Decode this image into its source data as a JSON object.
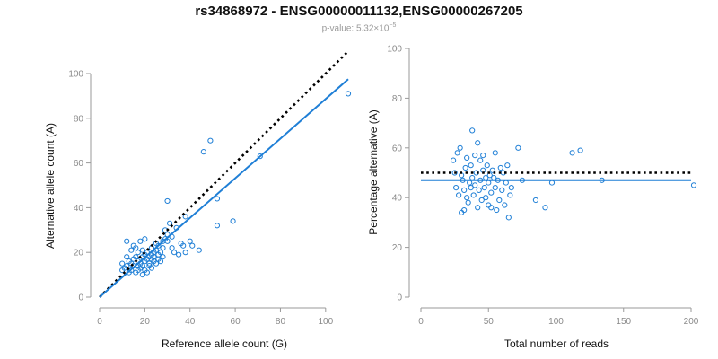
{
  "header": {
    "title": "rs34868972 - ENSG00000011132,ENSG00000267205",
    "pvalue_prefix": "p-value: 5.32×10",
    "pvalue_exponent": "−5"
  },
  "colors": {
    "points": "#1f7fd6",
    "fit": "#1f7fd6",
    "reference": "#000000",
    "axis": "#9a9a9a"
  },
  "chart_data": [
    {
      "type": "scatter",
      "xlabel": "Reference allele count (G)",
      "ylabel": "Alternative allele count (A)",
      "xlim": [
        0,
        110
      ],
      "ylim": [
        0,
        100
      ],
      "xticks": [
        0,
        20,
        40,
        60,
        80,
        100
      ],
      "yticks": [
        0,
        20,
        40,
        60,
        80,
        100
      ],
      "grid": false,
      "reference_line": {
        "style": "dotted",
        "x": [
          0,
          110
        ],
        "y": [
          0,
          110
        ]
      },
      "fit_line": {
        "style": "solid",
        "x": [
          0,
          110
        ],
        "y": [
          0,
          97.5
        ]
      },
      "points": [
        [
          10,
          12
        ],
        [
          10,
          15
        ],
        [
          11,
          13
        ],
        [
          12,
          14
        ],
        [
          12,
          18
        ],
        [
          12,
          25
        ],
        [
          13,
          11
        ],
        [
          13,
          16
        ],
        [
          14,
          12
        ],
        [
          14,
          15
        ],
        [
          14,
          21
        ],
        [
          15,
          14
        ],
        [
          15,
          17
        ],
        [
          15,
          23
        ],
        [
          16,
          18
        ],
        [
          16,
          22
        ],
        [
          16,
          11
        ],
        [
          17,
          12
        ],
        [
          17,
          14
        ],
        [
          17,
          20
        ],
        [
          17,
          16
        ],
        [
          18,
          13
        ],
        [
          18,
          15
        ],
        [
          18,
          25
        ],
        [
          19,
          10
        ],
        [
          19,
          18
        ],
        [
          19,
          21
        ],
        [
          19,
          14
        ],
        [
          20,
          12
        ],
        [
          20,
          16
        ],
        [
          20,
          26
        ],
        [
          20,
          19
        ],
        [
          21,
          11
        ],
        [
          21,
          17
        ],
        [
          21,
          20
        ],
        [
          22,
          14
        ],
        [
          22,
          18
        ],
        [
          22,
          15
        ],
        [
          23,
          13
        ],
        [
          23,
          17
        ],
        [
          23,
          19
        ],
        [
          23,
          22
        ],
        [
          24,
          16
        ],
        [
          24,
          20
        ],
        [
          24,
          18
        ],
        [
          25,
          15
        ],
        [
          25,
          21
        ],
        [
          25,
          24
        ],
        [
          26,
          17
        ],
        [
          26,
          23
        ],
        [
          26,
          19
        ],
        [
          27,
          16
        ],
        [
          27,
          20
        ],
        [
          28,
          22
        ],
        [
          28,
          18
        ],
        [
          28,
          25
        ],
        [
          29,
          26
        ],
        [
          29,
          30
        ],
        [
          30,
          28
        ],
        [
          30,
          43
        ],
        [
          30,
          25
        ],
        [
          31,
          33
        ],
        [
          32,
          22
        ],
        [
          32,
          27
        ],
        [
          33,
          20
        ],
        [
          34,
          31
        ],
        [
          35,
          19
        ],
        [
          36,
          24
        ],
        [
          37,
          23
        ],
        [
          38,
          20
        ],
        [
          38,
          36
        ],
        [
          40,
          25
        ],
        [
          41,
          23
        ],
        [
          44,
          21
        ],
        [
          46,
          65
        ],
        [
          49,
          70
        ],
        [
          52,
          44
        ],
        [
          52,
          32
        ],
        [
          59,
          34
        ],
        [
          71,
          63
        ],
        [
          110,
          91
        ]
      ]
    },
    {
      "type": "scatter",
      "xlabel": "Total number of reads",
      "ylabel": "Percentage alternative (A)",
      "xlim": [
        0,
        200
      ],
      "ylim": [
        0,
        100
      ],
      "xticks": [
        0,
        50,
        100,
        150,
        200
      ],
      "yticks": [
        0,
        20,
        40,
        60,
        80,
        100
      ],
      "grid": false,
      "reference_line": {
        "style": "dotted",
        "x": [
          0,
          200
        ],
        "y": [
          50,
          50
        ]
      },
      "fit_line": {
        "style": "solid",
        "x": [
          0,
          200
        ],
        "y": [
          47,
          47
        ]
      },
      "points": [
        [
          24,
          55
        ],
        [
          25,
          50
        ],
        [
          26,
          44
        ],
        [
          27,
          58
        ],
        [
          28,
          41
        ],
        [
          29,
          60
        ],
        [
          30,
          49
        ],
        [
          30,
          34
        ],
        [
          31,
          47
        ],
        [
          32,
          43
        ],
        [
          32,
          35
        ],
        [
          33,
          52
        ],
        [
          34,
          40
        ],
        [
          34,
          56
        ],
        [
          35,
          38
        ],
        [
          36,
          46
        ],
        [
          37,
          53
        ],
        [
          37,
          44
        ],
        [
          38,
          67
        ],
        [
          38,
          48
        ],
        [
          39,
          41
        ],
        [
          40,
          57
        ],
        [
          40,
          45
        ],
        [
          41,
          50
        ],
        [
          42,
          36
        ],
        [
          42,
          62
        ],
        [
          43,
          43
        ],
        [
          44,
          47
        ],
        [
          44,
          55
        ],
        [
          45,
          39
        ],
        [
          46,
          51
        ],
        [
          46,
          57
        ],
        [
          47,
          44
        ],
        [
          48,
          40
        ],
        [
          48,
          48
        ],
        [
          49,
          53
        ],
        [
          50,
          37
        ],
        [
          50,
          46
        ],
        [
          51,
          49
        ],
        [
          52,
          42
        ],
        [
          52,
          36
        ],
        [
          53,
          51
        ],
        [
          54,
          48
        ],
        [
          55,
          44
        ],
        [
          55,
          58
        ],
        [
          56,
          35
        ],
        [
          57,
          47
        ],
        [
          58,
          39
        ],
        [
          59,
          52
        ],
        [
          60,
          43
        ],
        [
          61,
          50
        ],
        [
          62,
          37
        ],
        [
          63,
          46
        ],
        [
          64,
          53
        ],
        [
          65,
          32
        ],
        [
          66,
          41
        ],
        [
          67,
          44
        ],
        [
          72,
          60
        ],
        [
          75,
          47
        ],
        [
          85,
          39
        ],
        [
          92,
          36
        ],
        [
          97,
          46
        ],
        [
          112,
          58
        ],
        [
          118,
          59
        ],
        [
          134,
          47
        ],
        [
          202,
          45
        ]
      ]
    }
  ]
}
